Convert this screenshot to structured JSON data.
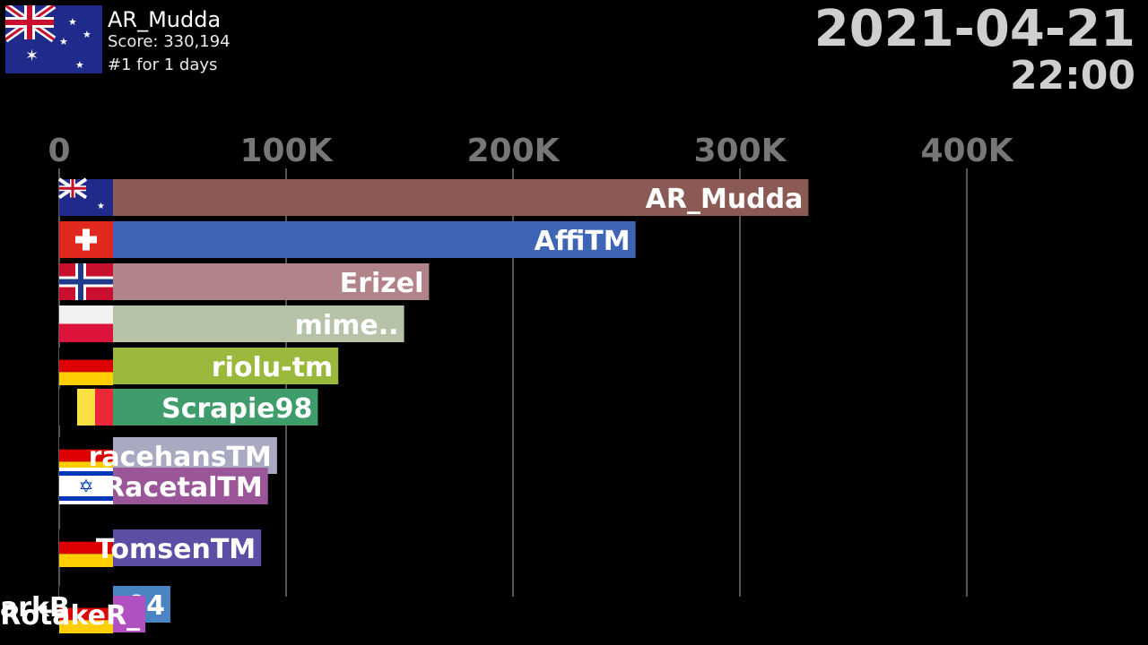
{
  "header": {
    "leader_name": "AR_Mudda",
    "leader_score": "Score: 330,194",
    "leader_streak": "#1 for 1 days",
    "leader_flag": "australia-flag-icon",
    "date": "2021-04-21",
    "time": "22:00"
  },
  "chart_data": {
    "type": "bar",
    "orientation": "horizontal",
    "x_ticks": [
      "0",
      "100K",
      "200K",
      "300K",
      "400K"
    ],
    "xlim": [
      0,
      400000
    ],
    "grid": true,
    "categories": [
      "AR_Mudda",
      "AffiTM",
      "Erizel",
      "mime..",
      "riolu-tm",
      "Scrapie98",
      "racehansTM",
      "RacetalTM",
      "TomsenTM",
      "94",
      "RotakeR_"
    ],
    "values": [
      330194,
      254000,
      163000,
      152000,
      123000,
      114000,
      96000,
      92000,
      89000,
      49000,
      38000
    ],
    "flags": [
      "australia",
      "switzerland",
      "norway",
      "poland",
      "germany",
      "belgium",
      "germany",
      "israel",
      "germany",
      "germany",
      "germany"
    ],
    "colors": [
      "#8b5a55",
      "#3e65b5",
      "#b3838a",
      "#b6c3a8",
      "#9ab83c",
      "#3f9c6b",
      "#a9a9c1",
      "#9b569a",
      "#5a4fa5",
      "#4a84c2",
      "#b150c0"
    ],
    "overlap_label": "arkB"
  }
}
